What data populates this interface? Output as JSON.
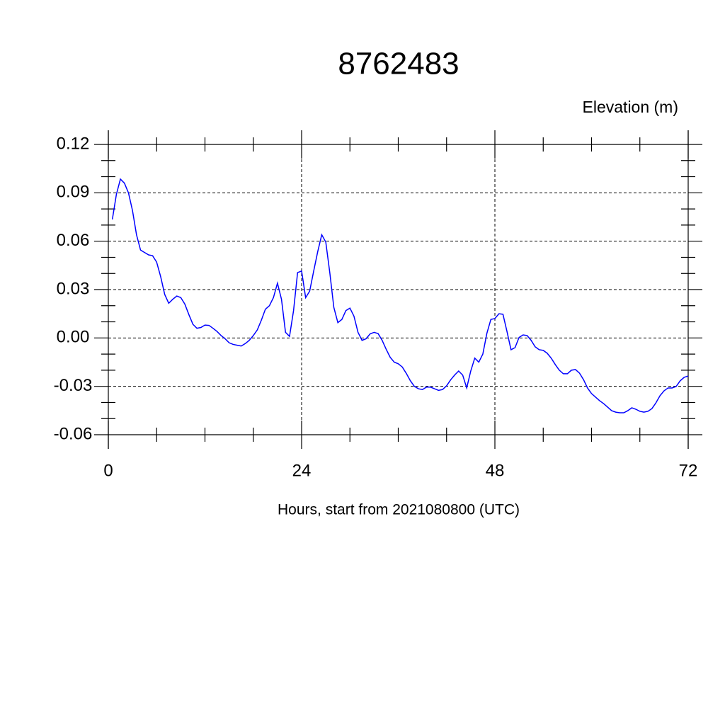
{
  "chart_data": {
    "type": "line",
    "title": "8762483",
    "y_label": "Elevation (m)",
    "x_label": "Hours, start from 2021080800 (UTC)",
    "xlim": [
      0,
      72
    ],
    "xticks": [
      0,
      24,
      48,
      72
    ],
    "ylim": [
      -0.06,
      0.12
    ],
    "yticks": [
      0.12,
      0.09,
      0.06,
      0.03,
      {
        "value": 0,
        "label": "0.00"
      },
      -0.03,
      -0.06
    ],
    "grid": true,
    "x": [
      0.5,
      1,
      1.5,
      2,
      2.5,
      3,
      3.5,
      4,
      4.5,
      5,
      5.5,
      6,
      6.5,
      7,
      7.5,
      8,
      8.5,
      9,
      9.5,
      10,
      10.5,
      11,
      11.5,
      12,
      12.5,
      13,
      13.5,
      14,
      14.5,
      15,
      15.5,
      16,
      16.5,
      17,
      17.5,
      18,
      18.5,
      19,
      19.5,
      20,
      20.5,
      21,
      21.5,
      22,
      22.5,
      23,
      23.5,
      24,
      24.5,
      25,
      25.5,
      26,
      26.5,
      27,
      27.5,
      28,
      28.5,
      29,
      29.5,
      30,
      30.5,
      31,
      31.5,
      32,
      32.5,
      33,
      33.5,
      34,
      34.5,
      35,
      35.5,
      36,
      36.5,
      37,
      37.5,
      38,
      38.5,
      39,
      39.5,
      40,
      40.5,
      41,
      41.5,
      42,
      42.5,
      43,
      43.5,
      44,
      44.5,
      45,
      45.5,
      46,
      46.5,
      47,
      47.5,
      48,
      48.5,
      49,
      49.5,
      50,
      50.5,
      51,
      51.5,
      52,
      52.5,
      53,
      53.5,
      54,
      54.5,
      55,
      55.5,
      56,
      56.5,
      57,
      57.5,
      58,
      58.5,
      59,
      59.5,
      60,
      60.5,
      61,
      61.5,
      62,
      62.5,
      63,
      63.5,
      64,
      64.5,
      65,
      65.5,
      66,
      66.5,
      67,
      67.5,
      68,
      68.5,
      69,
      69.5,
      70,
      70.5,
      71,
      71.5,
      72
    ],
    "series": [
      {
        "name": "Elevation",
        "color": "#0000ff",
        "values": [
          0.0735,
          0.089,
          0.0985,
          0.096,
          0.09,
          0.079,
          0.064,
          0.0545,
          0.053,
          0.0515,
          0.051,
          0.047,
          0.038,
          0.027,
          0.0215,
          0.024,
          0.026,
          0.025,
          0.021,
          0.0145,
          0.0085,
          0.006,
          0.0065,
          0.008,
          0.0078,
          0.006,
          0.004,
          0.0015,
          -0.0005,
          -0.003,
          -0.004,
          -0.0045,
          -0.005,
          -0.0035,
          -0.0015,
          0.0015,
          0.005,
          0.011,
          0.0178,
          0.02,
          0.025,
          0.034,
          0.024,
          0.0035,
          0.001,
          0.017,
          0.0405,
          0.0415,
          0.025,
          0.029,
          0.0415,
          0.0535,
          0.064,
          0.0595,
          0.0405,
          0.019,
          0.0095,
          0.0115,
          0.017,
          0.0185,
          0.0135,
          0.0035,
          -0.0015,
          -0.0005,
          0.0025,
          0.0035,
          0.0027,
          -0.0015,
          -0.007,
          -0.012,
          -0.015,
          -0.016,
          -0.018,
          -0.022,
          -0.0265,
          -0.03,
          -0.0315,
          -0.032,
          -0.0305,
          -0.0305,
          -0.0315,
          -0.0325,
          -0.032,
          -0.0297,
          -0.026,
          -0.023,
          -0.0205,
          -0.023,
          -0.031,
          -0.0205,
          -0.0125,
          -0.015,
          -0.01,
          0.0028,
          0.0115,
          0.012,
          0.015,
          0.0147,
          0.004,
          -0.0073,
          -0.006,
          0.0003,
          0.0019,
          0.0015,
          -0.0015,
          -0.0055,
          -0.0073,
          -0.0077,
          -0.0095,
          -0.0126,
          -0.0165,
          -0.02,
          -0.0222,
          -0.0222,
          -0.02,
          -0.0196,
          -0.0218,
          -0.0258,
          -0.031,
          -0.0345,
          -0.0367,
          -0.0389,
          -0.0407,
          -0.0429,
          -0.0451,
          -0.046,
          -0.0464,
          -0.0464,
          -0.0451,
          -0.0433,
          -0.0442,
          -0.0455,
          -0.046,
          -0.0455,
          -0.0438,
          -0.0402,
          -0.0358,
          -0.0328,
          -0.031,
          -0.031,
          -0.0301,
          -0.0266,
          -0.0244,
          -0.0236
        ]
      }
    ]
  }
}
